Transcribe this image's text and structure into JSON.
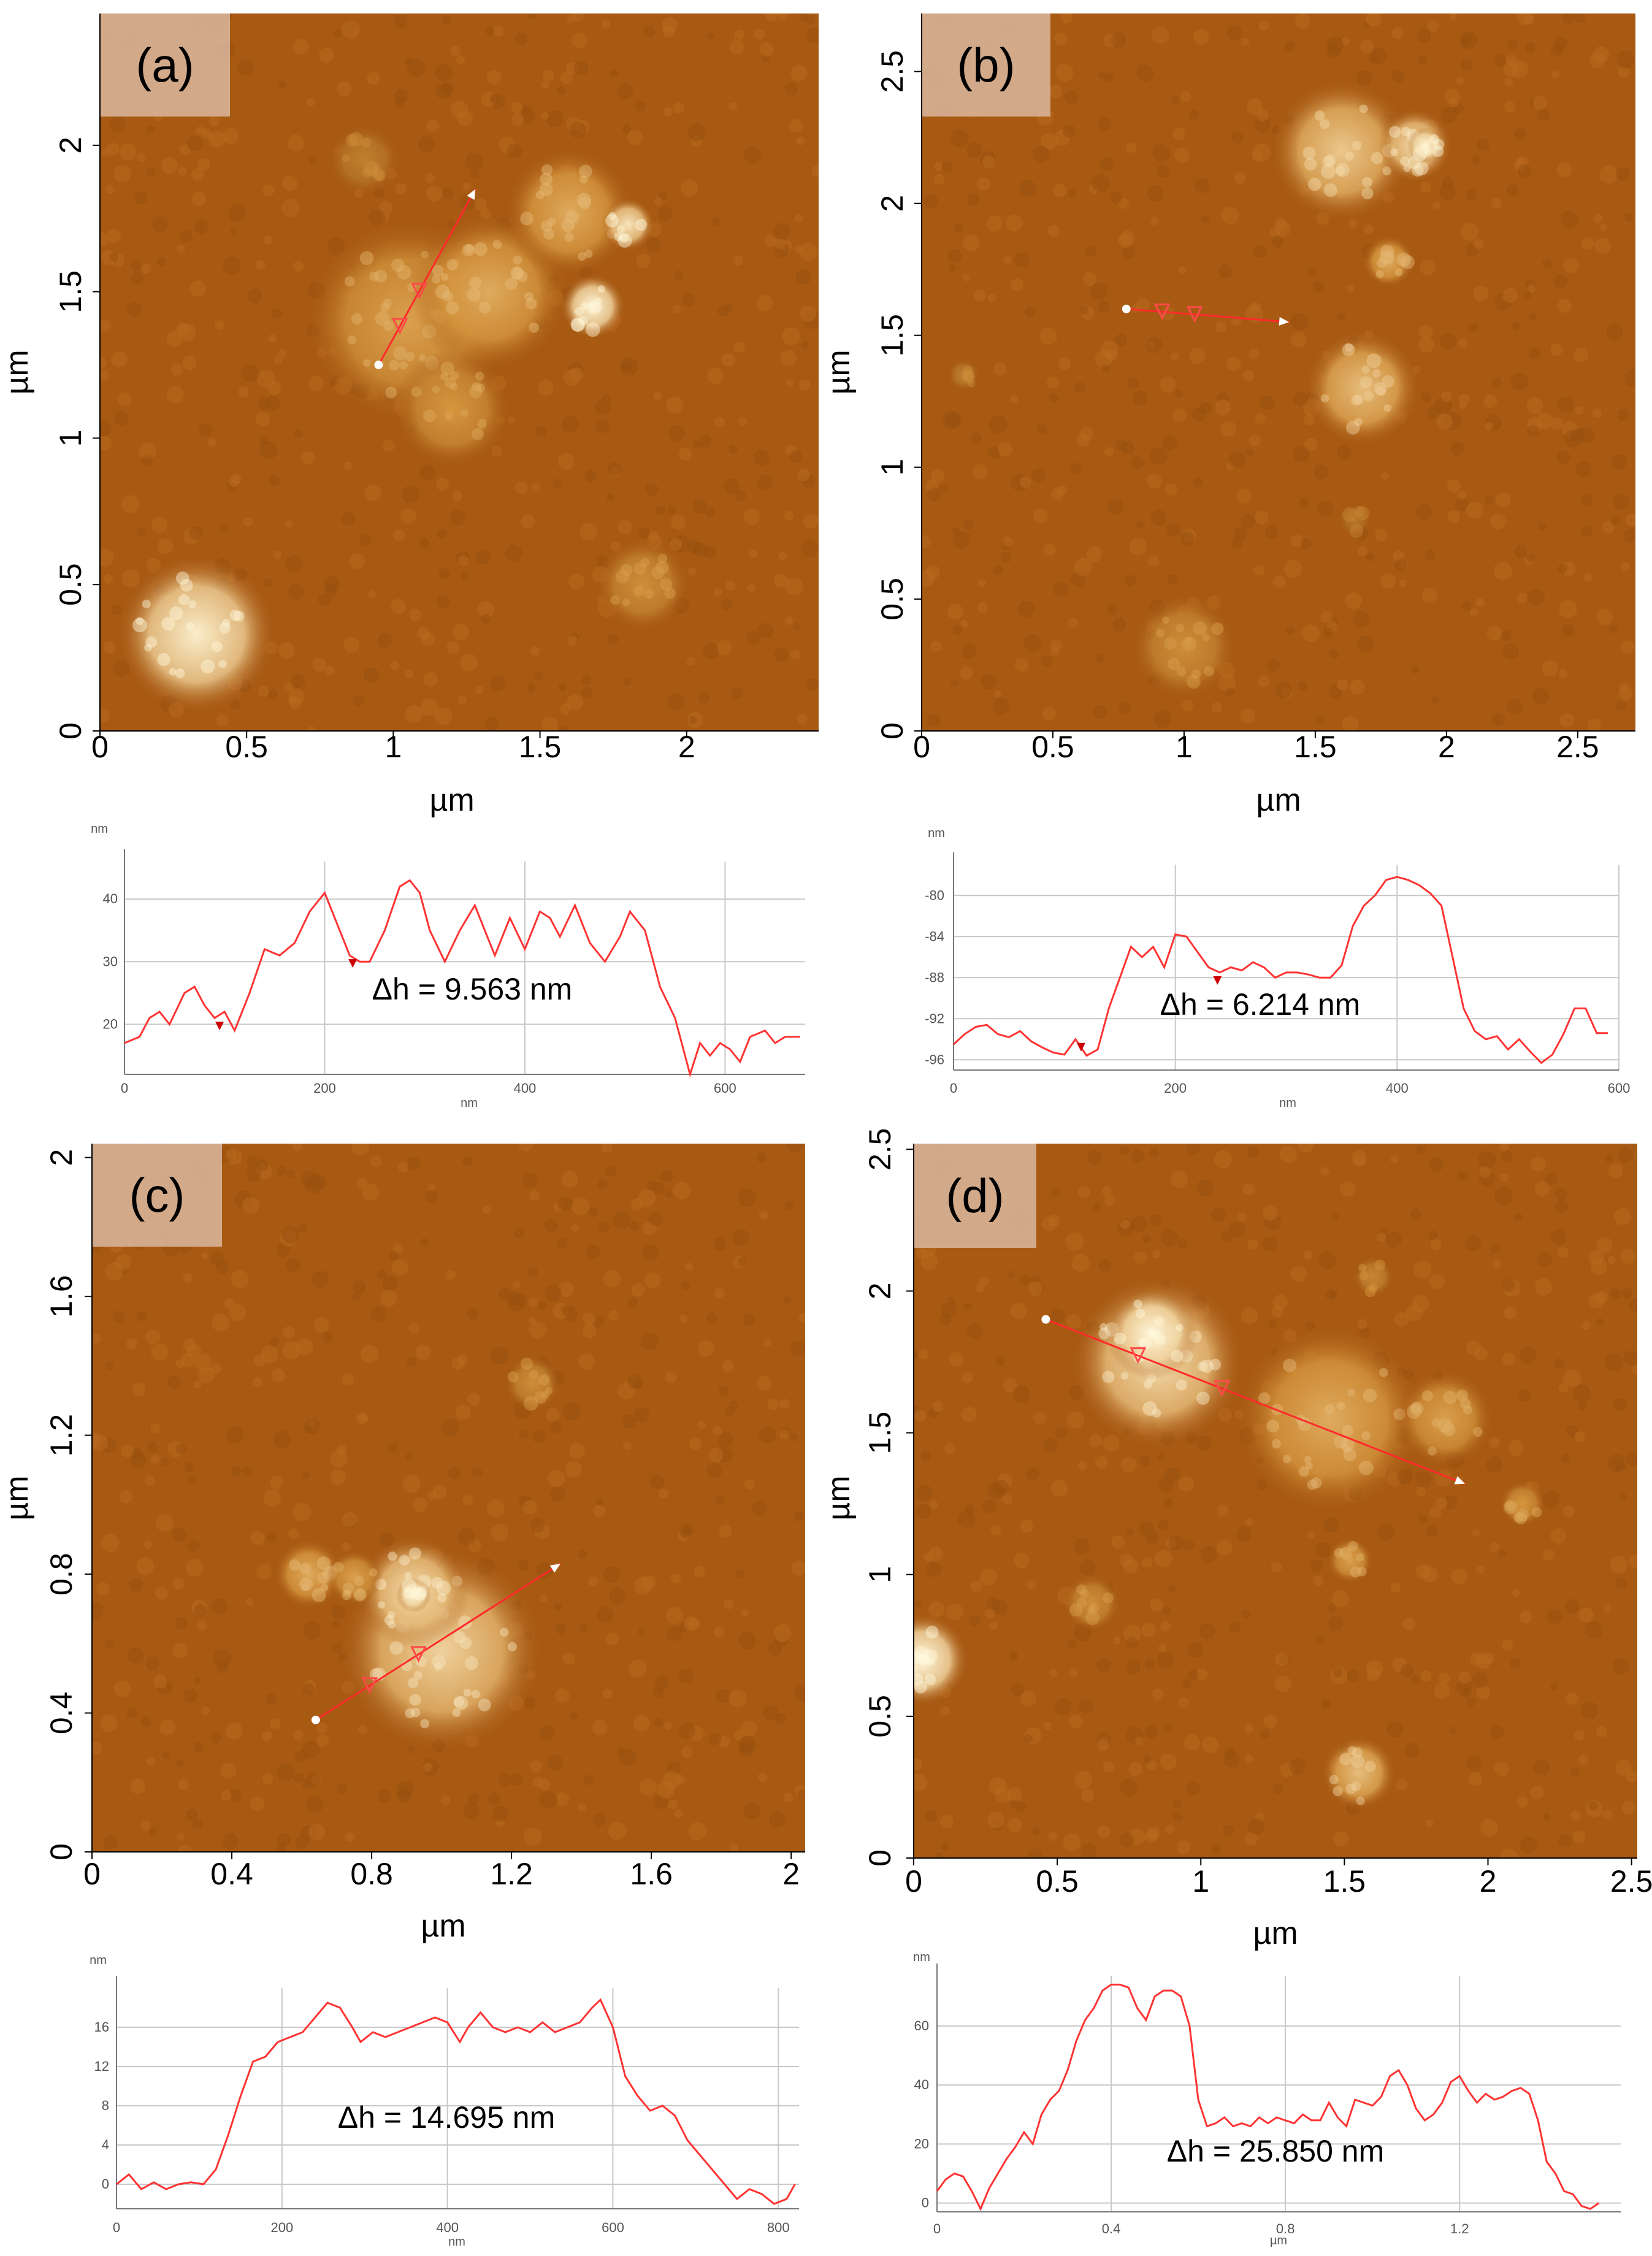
{
  "chart_data": [
    {
      "type": "heatmap",
      "panel_label": "(a)",
      "xlabel": "µm",
      "ylabel": "µm",
      "xticks": [
        "0",
        "0.5",
        "1",
        "1.5",
        "2"
      ],
      "yticks": [
        "0",
        "0.5",
        "1",
        "1.5",
        "2"
      ],
      "xlim": [
        0,
        2.45
      ],
      "ylim": [
        0,
        2.45
      ],
      "profile_line": {
        "start": [
          0.95,
          1.25
        ],
        "end": [
          1.28,
          1.85
        ]
      },
      "blobs": [
        {
          "x": 0.33,
          "y": 0.33,
          "r": 0.27,
          "level": 0.95
        },
        {
          "x": 1.05,
          "y": 1.4,
          "r": 0.35,
          "level": 0.55
        },
        {
          "x": 1.33,
          "y": 1.5,
          "r": 0.27,
          "level": 0.6
        },
        {
          "x": 1.6,
          "y": 1.77,
          "r": 0.22,
          "level": 0.6
        },
        {
          "x": 1.68,
          "y": 1.45,
          "r": 0.11,
          "level": 1.0
        },
        {
          "x": 1.8,
          "y": 1.73,
          "r": 0.09,
          "level": 0.9
        },
        {
          "x": 1.2,
          "y": 1.1,
          "r": 0.2,
          "level": 0.5
        },
        {
          "x": 1.85,
          "y": 0.5,
          "r": 0.16,
          "level": 0.45
        },
        {
          "x": 0.9,
          "y": 1.95,
          "r": 0.12,
          "level": 0.35
        }
      ]
    },
    {
      "type": "line",
      "unit_y": "nm",
      "unit_x": "nm",
      "annotation": "Δh = 9.563 nm",
      "xlim": [
        0,
        680
      ],
      "ylim": [
        12,
        46
      ],
      "xticks": [
        0,
        200,
        400,
        600
      ],
      "yticks": [
        20,
        30,
        40
      ],
      "x": [
        0,
        15,
        25,
        35,
        45,
        60,
        70,
        80,
        90,
        100,
        110,
        125,
        140,
        155,
        170,
        185,
        200,
        215,
        225,
        235,
        245,
        260,
        275,
        285,
        295,
        305,
        320,
        335,
        350,
        360,
        370,
        385,
        400,
        415,
        425,
        435,
        450,
        465,
        480,
        495,
        505,
        520,
        535,
        550,
        565,
        575,
        585,
        595,
        605,
        615,
        625,
        640,
        650,
        660,
        675
      ],
      "y": [
        17,
        18,
        21,
        22,
        20,
        25,
        26,
        23,
        21,
        22,
        19,
        25,
        32,
        31,
        33,
        38,
        41,
        35,
        31,
        30,
        30,
        35,
        42,
        43,
        41,
        35,
        30,
        35,
        39,
        35,
        31,
        37,
        32,
        38,
        37,
        34,
        39,
        33,
        30,
        34,
        38,
        35,
        26,
        21,
        12,
        17,
        15,
        17,
        16,
        14,
        18,
        19,
        17,
        18,
        18
      ],
      "markers": [
        95,
        228
      ]
    },
    {
      "type": "heatmap",
      "panel_label": "(b)",
      "xlabel": "µm",
      "ylabel": "µm",
      "xticks": [
        "0",
        "0.5",
        "1",
        "1.5",
        "2",
        "2.5"
      ],
      "yticks": [
        "0",
        "0.5",
        "1",
        "1.5",
        "2",
        "2.5"
      ],
      "xlim": [
        0,
        2.72
      ],
      "ylim": [
        0,
        2.72
      ],
      "profile_line": {
        "start": [
          0.78,
          1.6
        ],
        "end": [
          1.4,
          1.55
        ]
      },
      "blobs": [
        {
          "x": 1.6,
          "y": 2.2,
          "r": 0.27,
          "level": 0.75
        },
        {
          "x": 1.88,
          "y": 2.22,
          "r": 0.14,
          "level": 0.85
        },
        {
          "x": 1.92,
          "y": 2.22,
          "r": 0.07,
          "level": 1.0
        },
        {
          "x": 1.78,
          "y": 1.78,
          "r": 0.1,
          "level": 0.6
        },
        {
          "x": 1.68,
          "y": 1.3,
          "r": 0.22,
          "level": 0.7
        },
        {
          "x": 1.0,
          "y": 0.32,
          "r": 0.2,
          "level": 0.45
        },
        {
          "x": 0.16,
          "y": 1.35,
          "r": 0.06,
          "level": 0.35
        },
        {
          "x": 1.65,
          "y": 0.8,
          "r": 0.06,
          "level": 0.3
        }
      ]
    },
    {
      "type": "line",
      "unit_y": "nm",
      "unit_x": "nm",
      "annotation": "Δh = 6.214 nm",
      "xlim": [
        0,
        600
      ],
      "ylim": [
        -97,
        -77
      ],
      "xticks": [
        0,
        200,
        400,
        600
      ],
      "yticks": [
        -96,
        -92,
        -88,
        -84,
        -80
      ],
      "x": [
        0,
        10,
        20,
        30,
        40,
        50,
        60,
        70,
        80,
        90,
        100,
        110,
        120,
        130,
        140,
        150,
        160,
        170,
        180,
        190,
        200,
        210,
        220,
        230,
        240,
        250,
        260,
        270,
        280,
        290,
        300,
        310,
        320,
        330,
        340,
        350,
        360,
        370,
        380,
        390,
        400,
        410,
        420,
        430,
        440,
        450,
        460,
        470,
        480,
        490,
        500,
        510,
        520,
        530,
        540,
        550,
        560,
        570,
        580,
        590
      ],
      "y": [
        -94.5,
        -93.5,
        -92.8,
        -92.6,
        -93.5,
        -93.8,
        -93.2,
        -94.2,
        -94.8,
        -95.3,
        -95.5,
        -94,
        -95.6,
        -95,
        -91,
        -88,
        -85,
        -86,
        -85,
        -87,
        -83.8,
        -84,
        -85.5,
        -87,
        -87.5,
        -87,
        -87.3,
        -86.5,
        -87,
        -88,
        -87.5,
        -87.5,
        -87.7,
        -88,
        -88,
        -86.8,
        -83,
        -81,
        -80,
        -78.5,
        -78.2,
        -78.5,
        -79,
        -79.8,
        -81,
        -86,
        -91,
        -93.2,
        -94,
        -93.7,
        -95,
        -94,
        -95.2,
        -96.3,
        -95.5,
        -93.5,
        -91,
        -91,
        -93.4,
        -93.4
      ],
      "markers": [
        115,
        238
      ]
    },
    {
      "type": "heatmap",
      "panel_label": "(c)",
      "xlabel": "µm",
      "ylabel": "µm",
      "xticks": [
        "0",
        "0.4",
        "0.8",
        "1.2",
        "1.6",
        "2"
      ],
      "yticks": [
        "0",
        "0.4",
        "0.8",
        "1.2",
        "1.6",
        "2"
      ],
      "xlim": [
        0,
        2.04
      ],
      "ylim": [
        0,
        2.04
      ],
      "profile_line": {
        "start": [
          0.64,
          0.38
        ],
        "end": [
          1.34,
          0.83
        ]
      },
      "blobs": [
        {
          "x": 1.0,
          "y": 0.58,
          "r": 0.29,
          "level": 0.8
        },
        {
          "x": 0.92,
          "y": 0.75,
          "r": 0.16,
          "level": 0.85
        },
        {
          "x": 0.92,
          "y": 0.74,
          "r": 0.05,
          "level": 1.0
        },
        {
          "x": 0.62,
          "y": 0.8,
          "r": 0.1,
          "level": 0.6
        },
        {
          "x": 0.75,
          "y": 0.79,
          "r": 0.08,
          "level": 0.55
        },
        {
          "x": 1.26,
          "y": 1.35,
          "r": 0.08,
          "level": 0.45
        }
      ]
    },
    {
      "type": "line",
      "unit_y": "nm",
      "unit_x": "nm",
      "annotation": "Δh = 14.695 nm",
      "xlim": [
        0,
        825
      ],
      "ylim": [
        -2.5,
        20
      ],
      "xticks": [
        0,
        200,
        400,
        600,
        800
      ],
      "yticks": [
        0,
        4,
        8,
        12,
        16
      ],
      "x": [
        0,
        15,
        30,
        45,
        60,
        75,
        90,
        105,
        120,
        135,
        150,
        165,
        180,
        195,
        210,
        225,
        240,
        255,
        270,
        285,
        295,
        310,
        325,
        340,
        355,
        370,
        385,
        400,
        415,
        425,
        440,
        455,
        470,
        485,
        500,
        515,
        530,
        545,
        560,
        575,
        585,
        600,
        615,
        630,
        645,
        660,
        675,
        690,
        705,
        720,
        735,
        750,
        765,
        780,
        795,
        810,
        820
      ],
      "y": [
        0,
        1,
        -0.5,
        0.2,
        -0.5,
        0,
        0.2,
        0,
        1.5,
        5,
        9,
        12.5,
        13,
        14.5,
        15,
        15.5,
        17,
        18.5,
        18,
        16,
        14.5,
        15.5,
        15,
        15.5,
        16,
        16.5,
        17,
        16.5,
        14.5,
        16,
        17.5,
        16,
        15.5,
        16,
        15.5,
        16.5,
        15.5,
        16,
        16.5,
        18,
        18.8,
        16,
        11,
        9,
        7.5,
        8,
        7,
        4.5,
        3,
        1.5,
        0,
        -1.5,
        -0.5,
        -1,
        -2,
        -1.5,
        0
      ]
    },
    {
      "type": "heatmap",
      "panel_label": "(d)",
      "xlabel": "µm",
      "ylabel": "µm",
      "xticks": [
        "0",
        "0.5",
        "1",
        "1.5",
        "2",
        "2.5"
      ],
      "yticks": [
        "0",
        "0.5",
        "1",
        "1.5",
        "2",
        "2.5"
      ],
      "xlim": [
        0,
        2.52
      ],
      "ylim": [
        0,
        2.52
      ],
      "profile_line": {
        "start": [
          0.46,
          1.9
        ],
        "end": [
          1.92,
          1.32
        ]
      },
      "blobs": [
        {
          "x": 0.85,
          "y": 1.75,
          "r": 0.3,
          "level": 0.85
        },
        {
          "x": 0.83,
          "y": 1.85,
          "r": 0.16,
          "level": 1.0
        },
        {
          "x": 1.45,
          "y": 1.55,
          "r": 0.33,
          "level": 0.6
        },
        {
          "x": 1.85,
          "y": 1.55,
          "r": 0.17,
          "level": 0.55
        },
        {
          "x": 2.12,
          "y": 1.25,
          "r": 0.08,
          "level": 0.5
        },
        {
          "x": 0.03,
          "y": 0.7,
          "r": 0.16,
          "level": 1.0
        },
        {
          "x": 1.55,
          "y": 0.3,
          "r": 0.13,
          "level": 0.7
        },
        {
          "x": 1.52,
          "y": 1.05,
          "r": 0.08,
          "level": 0.55
        },
        {
          "x": 0.62,
          "y": 0.9,
          "r": 0.1,
          "level": 0.45
        },
        {
          "x": 1.6,
          "y": 2.05,
          "r": 0.07,
          "level": 0.4
        }
      ]
    },
    {
      "type": "line",
      "unit_y": "nm",
      "unit_x": "µm",
      "annotation": "Δh = 25.850 nm",
      "xlim": [
        0,
        1.57
      ],
      "ylim": [
        -3,
        77
      ],
      "xticks": [
        0,
        0.4,
        0.8,
        1.2
      ],
      "yticks": [
        0,
        20,
        40,
        60
      ],
      "x": [
        0,
        0.02,
        0.04,
        0.06,
        0.08,
        0.1,
        0.12,
        0.14,
        0.16,
        0.18,
        0.2,
        0.22,
        0.24,
        0.26,
        0.28,
        0.3,
        0.32,
        0.34,
        0.36,
        0.38,
        0.4,
        0.42,
        0.44,
        0.46,
        0.48,
        0.5,
        0.52,
        0.54,
        0.56,
        0.58,
        0.6,
        0.62,
        0.64,
        0.66,
        0.68,
        0.7,
        0.72,
        0.74,
        0.76,
        0.78,
        0.8,
        0.82,
        0.84,
        0.86,
        0.88,
        0.9,
        0.92,
        0.94,
        0.96,
        0.98,
        1.0,
        1.02,
        1.04,
        1.06,
        1.08,
        1.1,
        1.12,
        1.14,
        1.16,
        1.18,
        1.2,
        1.22,
        1.24,
        1.26,
        1.28,
        1.3,
        1.32,
        1.34,
        1.36,
        1.38,
        1.4,
        1.42,
        1.44,
        1.46,
        1.48,
        1.5,
        1.52
      ],
      "y": [
        4,
        8,
        10,
        9,
        4,
        -2,
        5,
        10,
        15,
        19,
        24,
        20,
        30,
        35,
        38,
        45,
        55,
        62,
        66,
        72,
        74,
        74,
        73,
        66,
        62,
        70,
        72,
        72,
        70,
        60,
        35,
        26,
        27,
        29,
        26,
        27,
        26,
        29,
        27,
        29,
        28,
        27,
        30,
        28,
        28,
        34,
        29,
        26,
        35,
        34,
        33,
        36,
        43,
        45,
        40,
        32,
        28,
        30,
        34,
        41,
        43,
        38,
        34,
        37,
        35,
        36,
        38,
        39,
        37,
        28,
        14,
        10,
        4,
        3,
        -1,
        -2,
        0
      ]
    }
  ]
}
